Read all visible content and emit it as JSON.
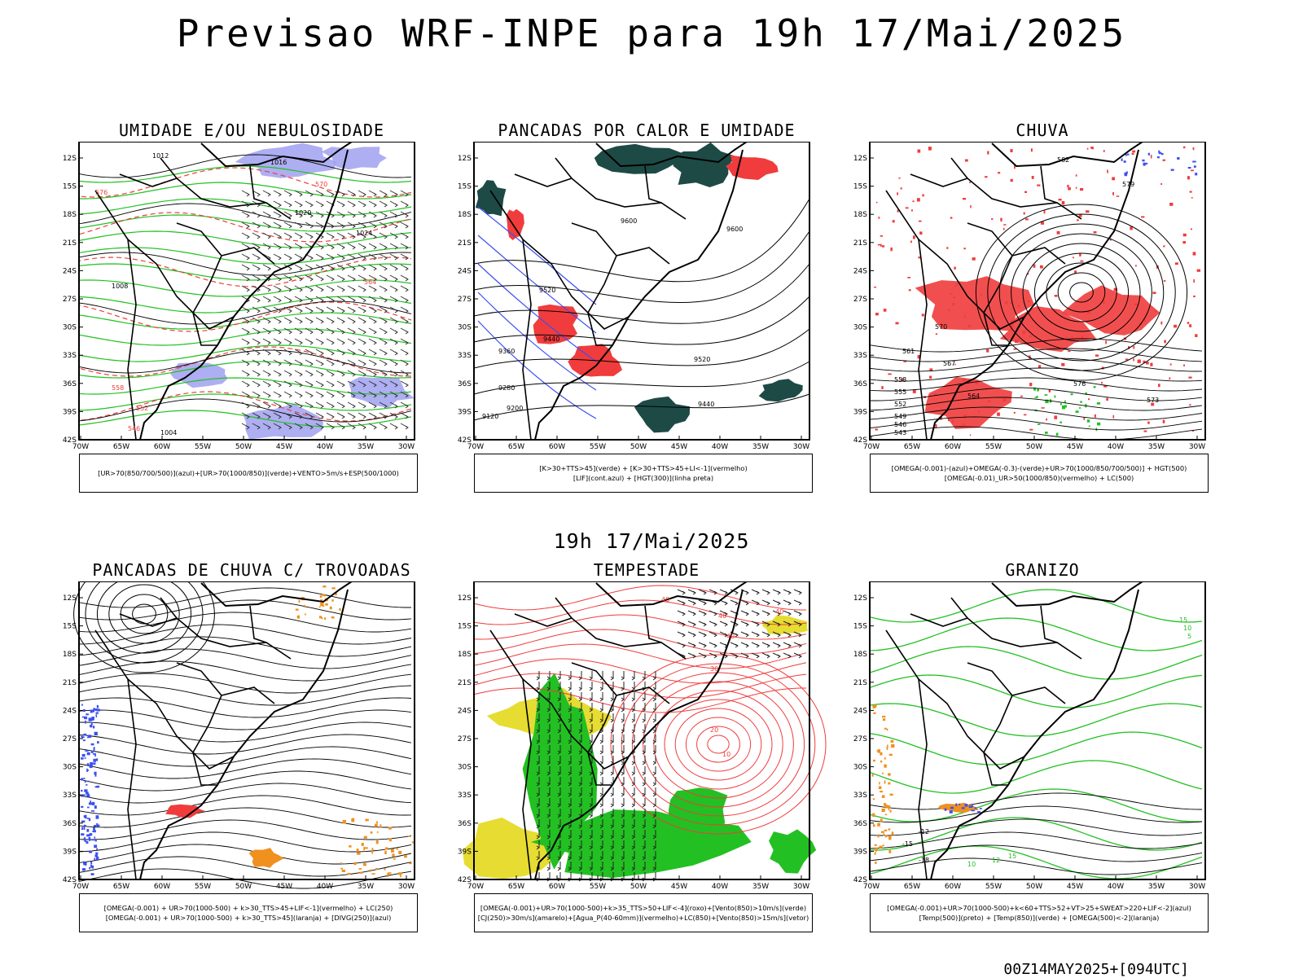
{
  "header": {
    "title": "Previsao WRF-INPE  para 19h 17/Mai/2025",
    "mid_title": "19h 17/Mai/2025",
    "run_stamp": "00Z14MAY2025+[094UTC]"
  },
  "axes": {
    "lat_labels": [
      "12S",
      "15S",
      "18S",
      "21S",
      "24S",
      "27S",
      "30S",
      "33S",
      "36S",
      "39S",
      "42S"
    ],
    "lon_labels": [
      "70W",
      "65W",
      "60W",
      "55W",
      "50W",
      "45W",
      "40W",
      "35W",
      "30W"
    ]
  },
  "colors": {
    "humidity_blue": "#a0a0f0",
    "green": "#22c022",
    "red": "#f03c3c",
    "dark_teal": "#1e4a46",
    "yellow": "#e6dc32",
    "orange": "#f0901e",
    "blue": "#3c50f0"
  },
  "panels": [
    {
      "title": "UMIDADE E/OU NEBULOSIDADE",
      "legend": [
        "[UR>70(850/700/500)](azul)+[UR>70(1000/850)](verde)+VENTO>5m/s+ESP(500/1000)"
      ],
      "contour_labels": [
        "1012",
        "1016",
        "1020",
        "1024",
        "1008",
        "1004",
        "576",
        "570",
        "564",
        "558",
        "552",
        "546"
      ]
    },
    {
      "title": "PANCADAS POR CALOR E UMIDADE",
      "legend": [
        "[K>30+TTS>45](verde) + [K>30+TTS>45+LI<-1](vermelho)",
        "[LIF](cont.azul) + [HGT(300)](linha preta)"
      ],
      "contour_labels": [
        "9600",
        "9600",
        "9520",
        "9440",
        "9520",
        "9440",
        "9360",
        "9280",
        "9200",
        "9120"
      ]
    },
    {
      "title": "CHUVA",
      "legend": [
        "[OMEGA(-0.001)-(azul)+OMEGA(-0.3)-(verde)+UR>70(1000/850/700/500)] + HGT(500)",
        "[OMEGA(-0.01)_UR>50(1000/850)(vermelho) + LC(500)"
      ],
      "contour_labels": [
        "582",
        "579",
        "576",
        "573",
        "570",
        "567",
        "564",
        "561",
        "558",
        "555",
        "552",
        "549",
        "546",
        "543"
      ]
    },
    {
      "title": "PANCADAS DE CHUVA C/ TROVOADAS",
      "legend": [
        "[OMEGA(-0.001) + UR>70(1000-500) + k>30_TTS>45+LIF<-1](vermelho) + LC(250)",
        "[OMEGA(-0.001) + UR>70(1000-500) + k>30_TTS>45](laranja) + [DIVG(250)](azul)"
      ],
      "contour_labels": []
    },
    {
      "title": "TEMPESTADE",
      "legend": [
        "[OMEGA(-0.001)+UR>70(1000-500)+k>35_TTS>50+LIF<-4](roxo)+[Vento(850)>10m/s](verde)",
        "[CJ(250)>30m/s](amarelo)+[Agua_P(40-60mm)](vermelho)+LC(850)+[Vento(850)>15m/s](vetor)"
      ],
      "contour_labels": [
        "40",
        "40",
        "40",
        "40",
        "30",
        "20",
        "10"
      ]
    },
    {
      "title": "GRANIZO",
      "legend": [
        "[OMEGA(-0.001)+UR>70(1000-500)+k<60+TTS>52+VT>25+SWEAT>220+LIF<-2](azul)",
        "[Temp(500)](preto) + [Temp(850)](verde) + [OMEGA(500)<-2](laranja)"
      ],
      "contour_labels": [
        "15",
        "10",
        "5",
        "-18",
        "-15",
        "-12",
        "10",
        "12",
        "15"
      ]
    }
  ]
}
